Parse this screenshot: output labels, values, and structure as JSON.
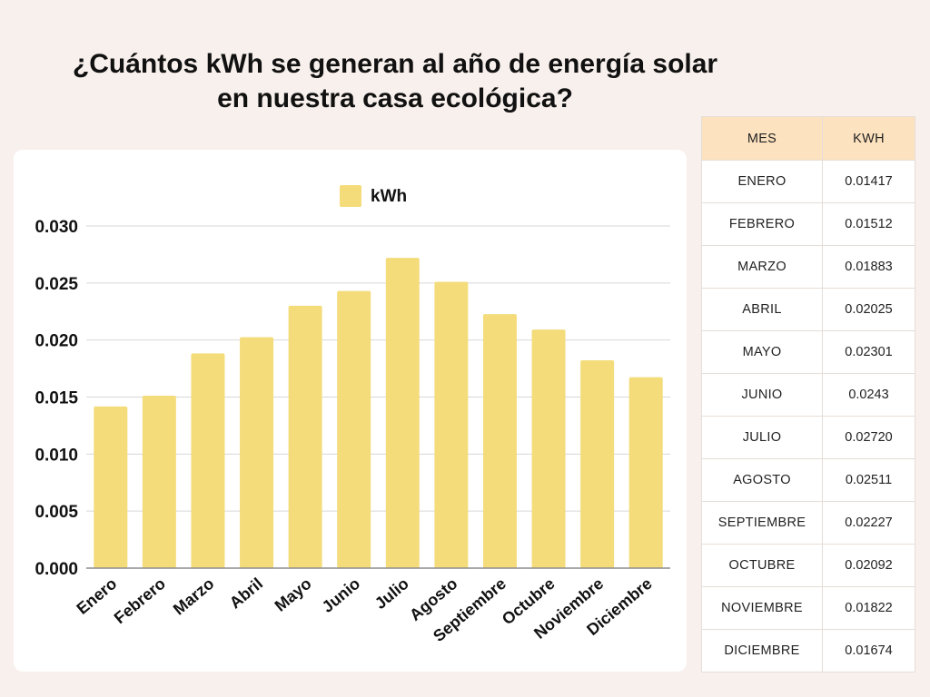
{
  "title": {
    "line1": "¿Cuántos kWh se generan al año de energía solar",
    "line2": "en nuestra casa ecológica?"
  },
  "colors": {
    "bar": "#f4dc7b",
    "grid": "#d7d7d7",
    "axis": "#8c8c8c",
    "text": "#111111"
  },
  "chart_data": {
    "type": "bar",
    "categories": [
      "Enero",
      "Febrero",
      "Marzo",
      "Abril",
      "Mayo",
      "Junio",
      "Julio",
      "Agosto",
      "Septiembre",
      "Octubre",
      "Noviembre",
      "Diciembre"
    ],
    "series": [
      {
        "name": "kWh",
        "values": [
          0.01417,
          0.01512,
          0.01883,
          0.02025,
          0.02301,
          0.0243,
          0.0272,
          0.02511,
          0.02227,
          0.02092,
          0.01822,
          0.01674
        ]
      }
    ],
    "yticks": [
      "0.000",
      "0.005",
      "0.010",
      "0.015",
      "0.020",
      "0.025",
      "0.030"
    ],
    "ylim": [
      0,
      0.03
    ],
    "legend": "top-center",
    "grid": true,
    "xlabel": "",
    "ylabel": ""
  },
  "table": {
    "headers": [
      "MES",
      "KWH"
    ],
    "rows": [
      [
        "ENERO",
        "0.01417"
      ],
      [
        "FEBRERO",
        "0.01512"
      ],
      [
        "MARZO",
        "0.01883"
      ],
      [
        "ABRIL",
        "0.02025"
      ],
      [
        "MAYO",
        "0.02301"
      ],
      [
        "JUNIO",
        "0.0243"
      ],
      [
        "JULIO",
        "0.02720"
      ],
      [
        "AGOSTO",
        "0.02511"
      ],
      [
        "SEPTIEMBRE",
        "0.02227"
      ],
      [
        "OCTUBRE",
        "0.02092"
      ],
      [
        "NOVIEMBRE",
        "0.01822"
      ],
      [
        "DICIEMBRE",
        "0.01674"
      ]
    ]
  }
}
